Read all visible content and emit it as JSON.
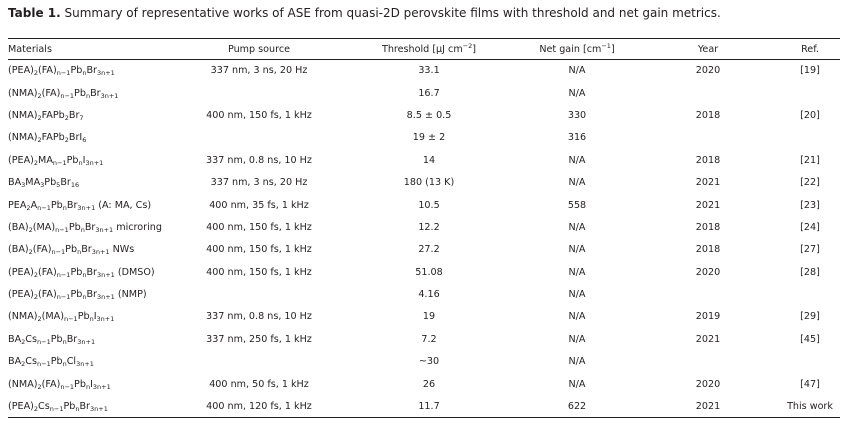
{
  "caption": {
    "label": "Table 1.",
    "text": "Summary of representative works of ASE from quasi-2D perovskite films with threshold and net gain metrics."
  },
  "table": {
    "headers": {
      "materials": "Materials",
      "pump": "Pump source",
      "threshold": [
        {
          "t": "Threshold [µJ cm"
        },
        {
          "t": "−2",
          "f": "sup"
        },
        {
          "t": "]"
        }
      ],
      "gain": [
        {
          "t": "Net gain [cm"
        },
        {
          "t": "−1",
          "f": "sup"
        },
        {
          "t": "]"
        }
      ],
      "year": "Year",
      "ref": "Ref."
    },
    "rows": [
      {
        "material": [
          {
            "t": "(PEA)"
          },
          {
            "t": "2",
            "f": "sub"
          },
          {
            "t": "(FA)"
          },
          {
            "t": "n−1",
            "f": "sub"
          },
          {
            "t": "Pb"
          },
          {
            "t": "n",
            "f": "sub"
          },
          {
            "t": "Br"
          },
          {
            "t": "3n+1",
            "f": "sub"
          }
        ],
        "pump": "337 nm, 3 ns, 20 Hz",
        "threshold": "33.1",
        "gain": "N/A",
        "year": "2020",
        "ref": "[19]"
      },
      {
        "material": [
          {
            "t": "(NMA)"
          },
          {
            "t": "2",
            "f": "sub"
          },
          {
            "t": "(FA)"
          },
          {
            "t": "n−1",
            "f": "sub"
          },
          {
            "t": "Pb"
          },
          {
            "t": "n",
            "f": "sub"
          },
          {
            "t": "Br"
          },
          {
            "t": "3n+1",
            "f": "sub"
          }
        ],
        "pump": "",
        "threshold": "16.7",
        "gain": "N/A",
        "year": "",
        "ref": ""
      },
      {
        "material": [
          {
            "t": "(NMA)"
          },
          {
            "t": "2",
            "f": "sub"
          },
          {
            "t": "FAPb"
          },
          {
            "t": "2",
            "f": "sub"
          },
          {
            "t": "Br"
          },
          {
            "t": "7",
            "f": "sub"
          }
        ],
        "pump": "400 nm, 150 fs, 1 kHz",
        "threshold": "8.5 ± 0.5",
        "gain": "330",
        "year": "2018",
        "ref": "[20]"
      },
      {
        "material": [
          {
            "t": "(NMA)"
          },
          {
            "t": "2",
            "f": "sub"
          },
          {
            "t": "FAPb"
          },
          {
            "t": "2",
            "f": "sub"
          },
          {
            "t": "BrI"
          },
          {
            "t": "6",
            "f": "sub"
          }
        ],
        "pump": "",
        "threshold": "19 ± 2",
        "gain": "316",
        "year": "",
        "ref": ""
      },
      {
        "material": [
          {
            "t": "(PEA)"
          },
          {
            "t": "2",
            "f": "sub"
          },
          {
            "t": "MA"
          },
          {
            "t": "n−1",
            "f": "sub"
          },
          {
            "t": "Pb"
          },
          {
            "t": "n",
            "f": "sub"
          },
          {
            "t": "I"
          },
          {
            "t": "3n+1",
            "f": "sub"
          }
        ],
        "pump": "337 nm, 0.8 ns, 10 Hz",
        "threshold": "14",
        "gain": "N/A",
        "year": "2018",
        "ref": "[21]"
      },
      {
        "material": [
          {
            "t": "BA"
          },
          {
            "t": "3",
            "f": "sub"
          },
          {
            "t": "MA"
          },
          {
            "t": "3",
            "f": "sub"
          },
          {
            "t": "Pb"
          },
          {
            "t": "5",
            "f": "sub"
          },
          {
            "t": "Br"
          },
          {
            "t": "16",
            "f": "sub"
          }
        ],
        "pump": "337 nm, 3 ns, 20 Hz",
        "threshold": "180 (13 K)",
        "gain": "N/A",
        "year": "2021",
        "ref": "[22]"
      },
      {
        "material": [
          {
            "t": "PEA"
          },
          {
            "t": "2",
            "f": "sub"
          },
          {
            "t": "A"
          },
          {
            "t": "n−1",
            "f": "sub"
          },
          {
            "t": "Pb"
          },
          {
            "t": "n",
            "f": "sub"
          },
          {
            "t": "Br"
          },
          {
            "t": "3n+1",
            "f": "sub"
          },
          {
            "t": " (A: MA, Cs)"
          }
        ],
        "pump": "400 nm, 35 fs, 1 kHz",
        "threshold": "10.5",
        "gain": "558",
        "year": "2021",
        "ref": "[23]"
      },
      {
        "material": [
          {
            "t": "(BA)"
          },
          {
            "t": "2",
            "f": "sub"
          },
          {
            "t": "(MA)"
          },
          {
            "t": "n−1",
            "f": "sub"
          },
          {
            "t": "Pb"
          },
          {
            "t": "n",
            "f": "sub"
          },
          {
            "t": "Br"
          },
          {
            "t": "3n+1",
            "f": "sub"
          },
          {
            "t": " microring"
          }
        ],
        "pump": "400 nm, 150 fs, 1 kHz",
        "threshold": "12.2",
        "gain": "N/A",
        "year": "2018",
        "ref": "[24]"
      },
      {
        "material": [
          {
            "t": "(BA)"
          },
          {
            "t": "2",
            "f": "sub"
          },
          {
            "t": "(FA)"
          },
          {
            "t": "n−1",
            "f": "sub"
          },
          {
            "t": "Pb"
          },
          {
            "t": "n",
            "f": "sub"
          },
          {
            "t": "Br"
          },
          {
            "t": "3n+1",
            "f": "sub"
          },
          {
            "t": " NWs"
          }
        ],
        "pump": "400 nm, 150 fs, 1 kHz",
        "threshold": "27.2",
        "gain": "N/A",
        "year": "2018",
        "ref": "[27]"
      },
      {
        "material": [
          {
            "t": "(PEA)"
          },
          {
            "t": "2",
            "f": "sub"
          },
          {
            "t": "(FA)"
          },
          {
            "t": "n−1",
            "f": "sub"
          },
          {
            "t": "Pb"
          },
          {
            "t": "n",
            "f": "sub"
          },
          {
            "t": "Br"
          },
          {
            "t": "3n+1",
            "f": "sub"
          },
          {
            "t": " (DMSO)"
          }
        ],
        "pump": "400 nm, 150 fs, 1 kHz",
        "threshold": "51.08",
        "gain": "N/A",
        "year": "2020",
        "ref": "[28]"
      },
      {
        "material": [
          {
            "t": "(PEA)"
          },
          {
            "t": "2",
            "f": "sub"
          },
          {
            "t": "(FA)"
          },
          {
            "t": "n−1",
            "f": "sub"
          },
          {
            "t": "Pb"
          },
          {
            "t": "n",
            "f": "sub"
          },
          {
            "t": "Br"
          },
          {
            "t": "3n+1",
            "f": "sub"
          },
          {
            "t": " (NMP)"
          }
        ],
        "pump": "",
        "threshold": "4.16",
        "gain": "N/A",
        "year": "",
        "ref": ""
      },
      {
        "material": [
          {
            "t": "(NMA)"
          },
          {
            "t": "2",
            "f": "sub"
          },
          {
            "t": "(MA)"
          },
          {
            "t": "n−1",
            "f": "sub"
          },
          {
            "t": "Pb"
          },
          {
            "t": "n",
            "f": "sub"
          },
          {
            "t": "I"
          },
          {
            "t": "3n+1",
            "f": "sub"
          }
        ],
        "pump": "337 nm, 0.8 ns, 10 Hz",
        "threshold": "19",
        "gain": "N/A",
        "year": "2019",
        "ref": "[29]"
      },
      {
        "material": [
          {
            "t": "BA"
          },
          {
            "t": "2",
            "f": "sub"
          },
          {
            "t": "Cs"
          },
          {
            "t": "n−1",
            "f": "sub"
          },
          {
            "t": "Pb"
          },
          {
            "t": "n",
            "f": "sub"
          },
          {
            "t": "Br"
          },
          {
            "t": "3n+1",
            "f": "sub"
          }
        ],
        "pump": "337 nm, 250 fs, 1 kHz",
        "threshold": "7.2",
        "gain": "N/A",
        "year": "2021",
        "ref": "[45]"
      },
      {
        "material": [
          {
            "t": "BA"
          },
          {
            "t": "2",
            "f": "sub"
          },
          {
            "t": "Cs"
          },
          {
            "t": "n−1",
            "f": "sub"
          },
          {
            "t": "Pb"
          },
          {
            "t": "n",
            "f": "sub"
          },
          {
            "t": "Cl"
          },
          {
            "t": "3n+1",
            "f": "sub"
          }
        ],
        "pump": "",
        "threshold": "~30",
        "gain": "N/A",
        "year": "",
        "ref": ""
      },
      {
        "material": [
          {
            "t": "(NMA)"
          },
          {
            "t": "2",
            "f": "sub"
          },
          {
            "t": "(FA)"
          },
          {
            "t": "n−1",
            "f": "sub"
          },
          {
            "t": "Pb"
          },
          {
            "t": "n",
            "f": "sub"
          },
          {
            "t": "I"
          },
          {
            "t": "3n+1",
            "f": "sub"
          }
        ],
        "pump": "400 nm, 50 fs, 1 kHz",
        "threshold": "26",
        "gain": "N/A",
        "year": "2020",
        "ref": "[47]"
      },
      {
        "material": [
          {
            "t": "(PEA)"
          },
          {
            "t": "2",
            "f": "sub"
          },
          {
            "t": "Cs"
          },
          {
            "t": "n−1",
            "f": "sub"
          },
          {
            "t": "Pb"
          },
          {
            "t": "n",
            "f": "sub"
          },
          {
            "t": "Br"
          },
          {
            "t": "3n+1",
            "f": "sub"
          }
        ],
        "pump": "400 nm, 120 fs, 1 kHz",
        "threshold": "11.7",
        "gain": "622",
        "year": "2021",
        "ref": "This work"
      }
    ]
  }
}
